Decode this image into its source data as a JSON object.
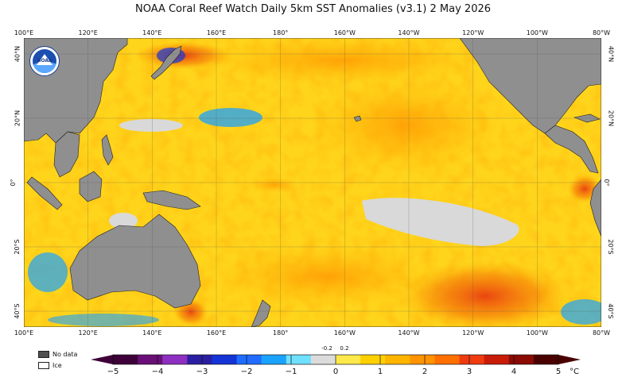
{
  "title": "NOAA Coral Reef Watch Daily 5km SST Anomalies  (v3.1)   2 May 2026",
  "logo_text": "NOAA",
  "longitude_labels": [
    "100°E",
    "120°E",
    "140°E",
    "160°E",
    "180°",
    "160°W",
    "140°W",
    "120°W",
    "100°W",
    "80°W"
  ],
  "latitude_labels": [
    "40°N",
    "20°N",
    "0°",
    "20°S",
    "40°S"
  ],
  "legend": {
    "no_data": "No data",
    "ice": "Ice"
  },
  "colorbar": {
    "tick_labels": [
      "−5",
      "−4",
      "−3",
      "−2",
      "−1",
      "0",
      "1",
      "2",
      "3",
      "4",
      "5"
    ],
    "near_zero_labels": [
      "-0.2",
      "0.2"
    ],
    "unit": "°C",
    "colors": [
      "#3d0038",
      "#6a0f77",
      "#8d2fc0",
      "#2a1fa0",
      "#1434d8",
      "#1f6cff",
      "#1aa2ff",
      "#6fe0ff",
      "#dcdcdc",
      "#ffe94a",
      "#ffd000",
      "#ffb400",
      "#ff9300",
      "#ff6f00",
      "#ee3b10",
      "#c81c08",
      "#8a0a04",
      "#4a0000"
    ]
  },
  "colors": {
    "land": "#8f8f8f",
    "no_data": "#505050",
    "ice": "#ffffff",
    "warm_base": "#ffd51c"
  }
}
